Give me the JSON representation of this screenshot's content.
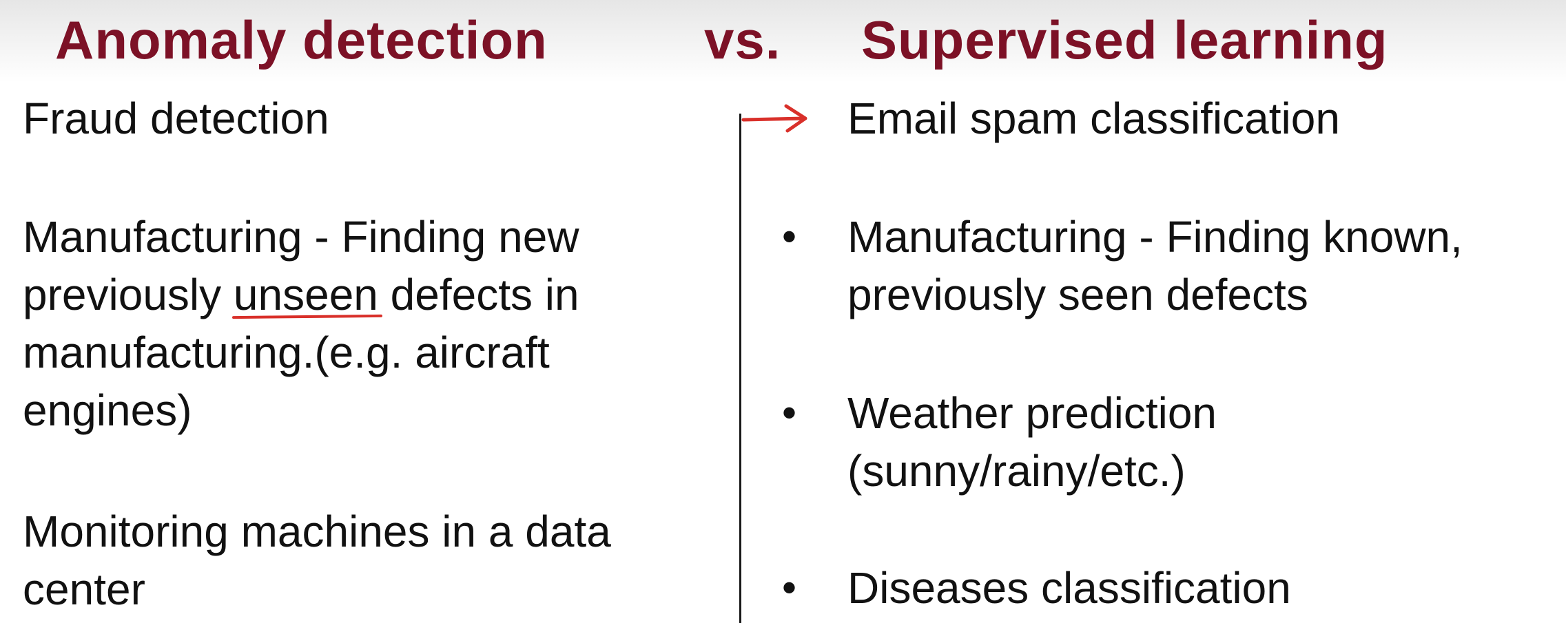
{
  "header": {
    "left_title": "Anomaly detection",
    "vs_label": "vs.",
    "right_title": "Supervised learning"
  },
  "left_column": {
    "items": [
      {
        "lines": [
          "Fraud detection"
        ]
      },
      {
        "line1": "Manufacturing -  Finding new",
        "line2_before": "previously ",
        "line2_underlined": "unseen",
        "line2_after": " defects in",
        "line3": "manufacturing.(e.g. aircraft",
        "line4": "engines)"
      },
      {
        "lines": [
          "Monitoring machines in a data",
          "center"
        ]
      }
    ]
  },
  "right_column": {
    "items": [
      {
        "marker": "arrow",
        "lines": [
          "Email spam classification"
        ]
      },
      {
        "marker": "•",
        "lines": [
          "Manufacturing -  Finding known,",
          "previously seen defects"
        ]
      },
      {
        "marker": "•",
        "lines": [
          "Weather prediction",
          "(sunny/rainy/etc.)"
        ]
      },
      {
        "marker": "•",
        "lines": [
          "Diseases classification"
        ]
      }
    ]
  },
  "colors": {
    "title": "#7c1126",
    "annotation": "#d9302a",
    "text": "#111111"
  },
  "icons": {
    "arrow_marker": "right-arrow-icon"
  }
}
